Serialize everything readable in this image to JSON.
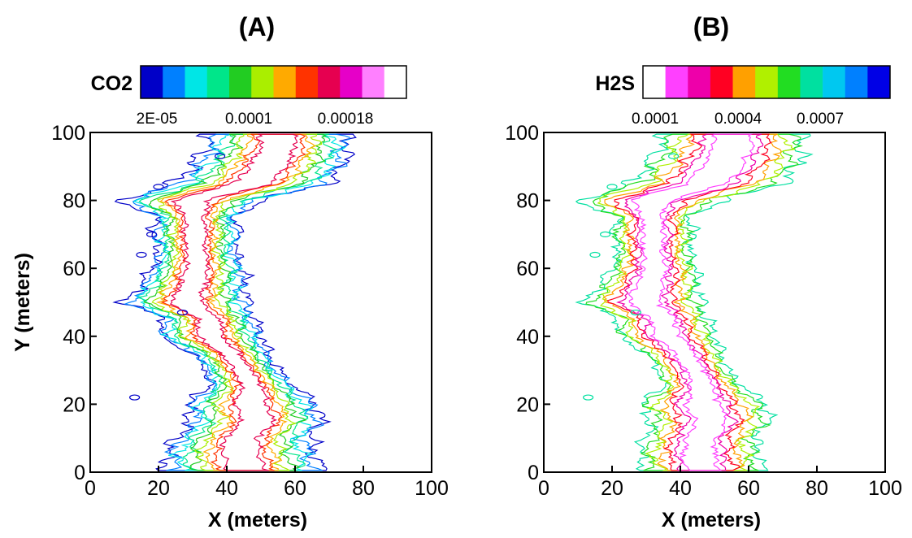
{
  "chart_data": [
    {
      "type": "contour",
      "panel": "(A)",
      "title": "(A)",
      "xlabel": "X (meters)",
      "ylabel": "Y (meters)",
      "xlim": [
        0,
        100
      ],
      "ylim": [
        0,
        100
      ],
      "xticks": [
        "0",
        "20",
        "40",
        "60",
        "80",
        "100"
      ],
      "yticks": [
        "0",
        "20",
        "40",
        "60",
        "80",
        "100"
      ],
      "grid": false,
      "colorbar": {
        "title": "CO2",
        "placement": "top",
        "tick_labels": [
          "2E-05",
          "0.0001",
          "0.00018"
        ],
        "colors": [
          "#0000c8",
          "#0080ff",
          "#00e6e6",
          "#00e68a",
          "#22cc22",
          "#aaee00",
          "#ffaa00",
          "#ff3300",
          "#e60050",
          "#e600c8",
          "#ff80ff",
          "#ffffff"
        ]
      },
      "plume_band": [
        [
          0,
          23,
          68
        ],
        [
          5,
          22,
          66
        ],
        [
          10,
          25,
          64
        ],
        [
          15,
          30,
          68
        ],
        [
          20,
          28,
          66
        ],
        [
          25,
          35,
          60
        ],
        [
          30,
          34,
          55
        ],
        [
          35,
          30,
          52
        ],
        [
          40,
          20,
          50
        ],
        [
          45,
          22,
          48
        ],
        [
          50,
          10,
          46
        ],
        [
          55,
          15,
          45
        ],
        [
          60,
          18,
          45
        ],
        [
          65,
          20,
          42
        ],
        [
          70,
          18,
          44
        ],
        [
          75,
          20,
          42
        ],
        [
          80,
          9,
          50
        ],
        [
          85,
          25,
          70
        ],
        [
          90,
          30,
          74
        ],
        [
          95,
          34,
          76
        ],
        [
          100,
          35,
          75
        ]
      ]
    },
    {
      "type": "contour",
      "panel": "(B)",
      "title": "(B)",
      "xlabel": "X (meters)",
      "ylabel": "",
      "xlim": [
        0,
        100
      ],
      "ylim": [
        0,
        100
      ],
      "xticks": [
        "0",
        "20",
        "40",
        "60",
        "80",
        "100"
      ],
      "yticks": [
        "0",
        "20",
        "40",
        "60",
        "80",
        "100"
      ],
      "grid": false,
      "colorbar": {
        "title": "H2S",
        "placement": "top",
        "tick_labels": [
          "0.0001",
          "0.0004",
          "0.0007"
        ],
        "colors": [
          "#ffffff",
          "#ff40ff",
          "#ee00aa",
          "#ff0022",
          "#ffa000",
          "#b0f000",
          "#22dd22",
          "#00e0a0",
          "#00c8f0",
          "#0080ff",
          "#0000e6"
        ]
      },
      "plume_band": [
        [
          0,
          30,
          64
        ],
        [
          5,
          28,
          63
        ],
        [
          10,
          30,
          62
        ],
        [
          15,
          32,
          66
        ],
        [
          20,
          28,
          65
        ],
        [
          25,
          35,
          58
        ],
        [
          30,
          34,
          54
        ],
        [
          35,
          30,
          52
        ],
        [
          40,
          22,
          50
        ],
        [
          45,
          22,
          48
        ],
        [
          50,
          12,
          46
        ],
        [
          55,
          17,
          45
        ],
        [
          60,
          20,
          45
        ],
        [
          65,
          22,
          42
        ],
        [
          70,
          20,
          44
        ],
        [
          75,
          22,
          42
        ],
        [
          80,
          10,
          52
        ],
        [
          85,
          26,
          70
        ],
        [
          90,
          30,
          74
        ],
        [
          95,
          34,
          76
        ],
        [
          100,
          35,
          75
        ]
      ]
    }
  ]
}
